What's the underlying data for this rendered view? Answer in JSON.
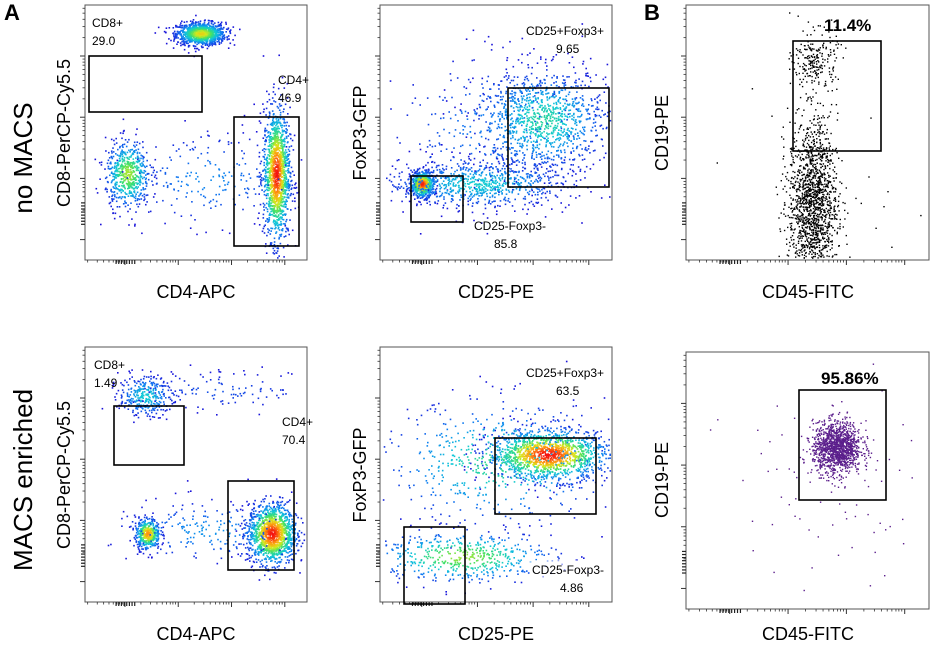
{
  "panel_labels": [
    "A",
    "B"
  ],
  "row_labels": [
    "no MACS",
    "MACS enriched"
  ],
  "colors": {
    "density_ramp": [
      "#1a10d8",
      "#0f7cf2",
      "#10c8d8",
      "#3ee06a",
      "#d8e81a",
      "#ff9a10",
      "#f41010"
    ],
    "facs_black": "#000000",
    "facs_purple": "#5b1f8c"
  },
  "chart_data": [
    {
      "id": "A-row1-cd8-cd4",
      "type": "scatter",
      "style": "density",
      "xlabel": "CD4-APC",
      "ylabel": "CD8-PerCP-Cy5.5",
      "gates": [
        {
          "name": "CD8+",
          "percent": "29.0"
        },
        {
          "name": "CD4+",
          "percent": "46.9"
        }
      ],
      "populations": [
        {
          "cx": 0.52,
          "cy": 0.89,
          "sx": 0.055,
          "sy": 0.022,
          "weight": 0.42,
          "peak": 0.72
        },
        {
          "cx": 0.86,
          "cy": 0.34,
          "sx": 0.03,
          "sy": 0.13,
          "weight": 0.52,
          "peak": 1.0
        },
        {
          "cx": 0.19,
          "cy": 0.34,
          "sx": 0.05,
          "sy": 0.065,
          "weight": 0.22,
          "peak": 0.62
        },
        {
          "cx": 0.55,
          "cy": 0.32,
          "sx": 0.2,
          "sy": 0.09,
          "weight": 0.08,
          "peak": 0.2
        }
      ]
    },
    {
      "id": "A-row1-foxp3-cd25",
      "type": "scatter",
      "style": "density",
      "xlabel": "CD25-PE",
      "ylabel": "FoxP3-GFP",
      "gates": [
        {
          "name": "CD25+Foxp3+",
          "percent": "9.65"
        },
        {
          "name": "CD25-Foxp3-",
          "percent": "85.8"
        }
      ],
      "populations": [
        {
          "cx": 0.18,
          "cy": 0.3,
          "sx": 0.025,
          "sy": 0.025,
          "weight": 0.25,
          "peak": 1.0
        },
        {
          "cx": 0.42,
          "cy": 0.3,
          "sx": 0.2,
          "sy": 0.045,
          "weight": 0.3,
          "peak": 0.35
        },
        {
          "cx": 0.7,
          "cy": 0.55,
          "sx": 0.14,
          "sy": 0.1,
          "weight": 0.4,
          "peak": 0.42
        },
        {
          "cx": 0.5,
          "cy": 0.52,
          "sx": 0.25,
          "sy": 0.15,
          "weight": 0.12,
          "peak": 0.18
        }
      ]
    },
    {
      "id": "B-row1-cd19-cd45",
      "type": "scatter",
      "style": "dots",
      "xlabel": "CD45-FITC",
      "ylabel": "CD19-PE",
      "gates": [
        {
          "name": "",
          "percent": "11.4%"
        }
      ],
      "populations": [
        {
          "cx": 0.53,
          "cy": 0.78,
          "sx": 0.045,
          "sy": 0.06,
          "count": 220
        },
        {
          "cx": 0.52,
          "cy": 0.23,
          "sx": 0.05,
          "sy": 0.16,
          "count": 1500
        },
        {
          "cx": 0.5,
          "cy": 0.3,
          "sx": 0.25,
          "sy": 0.25,
          "count": 25
        }
      ]
    },
    {
      "id": "A-row2-cd8-cd4",
      "type": "scatter",
      "style": "density",
      "xlabel": "CD4-APC",
      "ylabel": "CD8-PerCP-Cy5.5",
      "gates": [
        {
          "name": "CD8+",
          "percent": "1.49"
        },
        {
          "name": "CD4+",
          "percent": "70.4"
        }
      ],
      "populations": [
        {
          "cx": 0.27,
          "cy": 0.81,
          "sx": 0.06,
          "sy": 0.04,
          "weight": 0.12,
          "peak": 0.35
        },
        {
          "cx": 0.84,
          "cy": 0.27,
          "sx": 0.055,
          "sy": 0.06,
          "weight": 0.5,
          "peak": 1.0
        },
        {
          "cx": 0.28,
          "cy": 0.27,
          "sx": 0.028,
          "sy": 0.03,
          "weight": 0.16,
          "peak": 0.85
        },
        {
          "cx": 0.55,
          "cy": 0.28,
          "sx": 0.22,
          "sy": 0.06,
          "weight": 0.08,
          "peak": 0.22
        },
        {
          "cx": 0.6,
          "cy": 0.83,
          "sx": 0.25,
          "sy": 0.04,
          "weight": 0.05,
          "peak": 0.1
        }
      ]
    },
    {
      "id": "A-row2-foxp3-cd25",
      "type": "scatter",
      "style": "density",
      "xlabel": "CD25-PE",
      "ylabel": "FoxP3-GFP",
      "gates": [
        {
          "name": "CD25+Foxp3+",
          "percent": "63.5"
        },
        {
          "name": "CD25-Foxp3-",
          "percent": "4.86"
        }
      ],
      "populations": [
        {
          "cx": 0.72,
          "cy": 0.58,
          "sx": 0.13,
          "sy": 0.05,
          "weight": 0.55,
          "peak": 1.0
        },
        {
          "cx": 0.5,
          "cy": 0.55,
          "sx": 0.25,
          "sy": 0.12,
          "weight": 0.2,
          "peak": 0.45
        },
        {
          "cx": 0.35,
          "cy": 0.18,
          "sx": 0.2,
          "sy": 0.05,
          "weight": 0.2,
          "peak": 0.6
        }
      ]
    },
    {
      "id": "B-row2-cd19-cd45",
      "type": "scatter",
      "style": "dots",
      "xlabel": "CD45-FITC",
      "ylabel": "CD19-PE",
      "gates": [
        {
          "name": "",
          "percent": "95.86%"
        }
      ],
      "populations": [
        {
          "cx": 0.62,
          "cy": 0.63,
          "sx": 0.05,
          "sy": 0.05,
          "count": 1300
        },
        {
          "cx": 0.55,
          "cy": 0.4,
          "sx": 0.2,
          "sy": 0.25,
          "count": 70
        }
      ]
    }
  ]
}
